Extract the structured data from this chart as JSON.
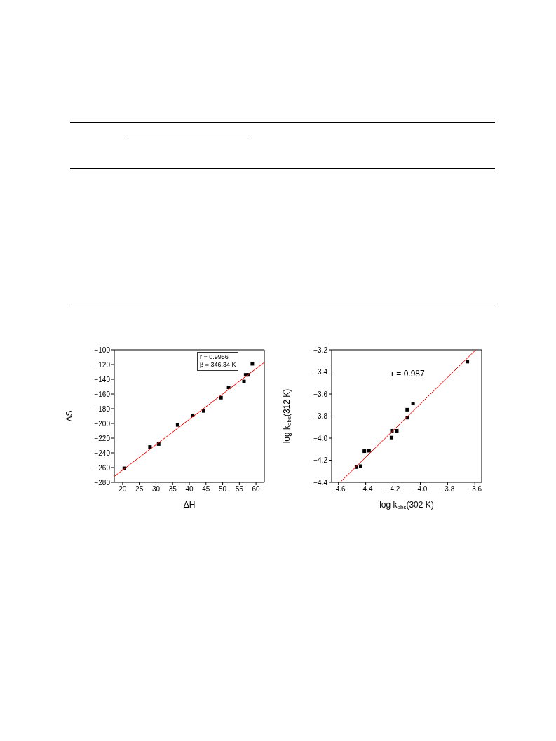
{
  "chart_data": [
    {
      "type": "scatter",
      "xlabel": "ΔH",
      "ylabel": "ΔS",
      "xlim": [
        17.5,
        62.5
      ],
      "ylim": [
        -280,
        -100
      ],
      "xticks": [
        20,
        25,
        30,
        35,
        40,
        45,
        50,
        55,
        60
      ],
      "yticks": [
        -280,
        -260,
        -240,
        -220,
        -200,
        -180,
        -160,
        -140,
        -120,
        -100
      ],
      "grid": false,
      "legend": false,
      "annotations": [
        "r = 0.9956",
        "β = 346.34 K"
      ],
      "series": [
        {
          "marker": "square",
          "color": "#000000",
          "x": [
            20.5,
            28.2,
            30.8,
            36.5,
            41,
            44.3,
            49.5,
            51.8,
            56.4,
            56.9,
            57.7,
            58.9
          ],
          "values": [
            -261,
            -232,
            -228,
            -202,
            -189,
            -183,
            -165,
            -151,
            -143,
            -134,
            -134,
            -119
          ]
        },
        {
          "type": "line",
          "marker": "none",
          "color": "#ff0000",
          "x": [
            17.5,
            62.5
          ],
          "values": [
            -272,
            -117
          ]
        }
      ]
    },
    {
      "type": "scatter",
      "xlabel": "log k$_{obs}$(302 K)",
      "ylabel": "log k$_{obs}$(312 K)",
      "xlim": [
        -4.65,
        -3.55
      ],
      "ylim": [
        -4.4,
        -3.2
      ],
      "xticks": [
        -4.6,
        -4.4,
        -4.2,
        {
          "value": -4,
          "label": "−4.0"
        },
        -3.8,
        -3.6
      ],
      "yticks": [
        -4.4,
        -4.2,
        {
          "value": -4,
          "label": "−4.0"
        },
        -3.8,
        -3.6,
        -3.4,
        -3.2
      ],
      "grid": false,
      "legend": false,
      "annotations": [
        "r = 0.987"
      ],
      "series": [
        {
          "marker": "square",
          "color": "#000000",
          "x": [
            -4.468,
            -4.437,
            -4.41,
            -4.376,
            -4.211,
            -4.208,
            -4.172,
            -4.096,
            -4.095,
            -4.053,
            -3.655
          ],
          "values": [
            -4.262,
            -4.254,
            -4.118,
            -4.114,
            -3.995,
            -3.933,
            -3.933,
            -3.742,
            -3.814,
            -3.686,
            -3.307
          ]
        },
        {
          "type": "line",
          "marker": "none",
          "color": "#ff0000",
          "x": [
            -4.588,
            -3.593
          ],
          "values": [
            -4.4,
            -3.2
          ]
        }
      ]
    }
  ]
}
